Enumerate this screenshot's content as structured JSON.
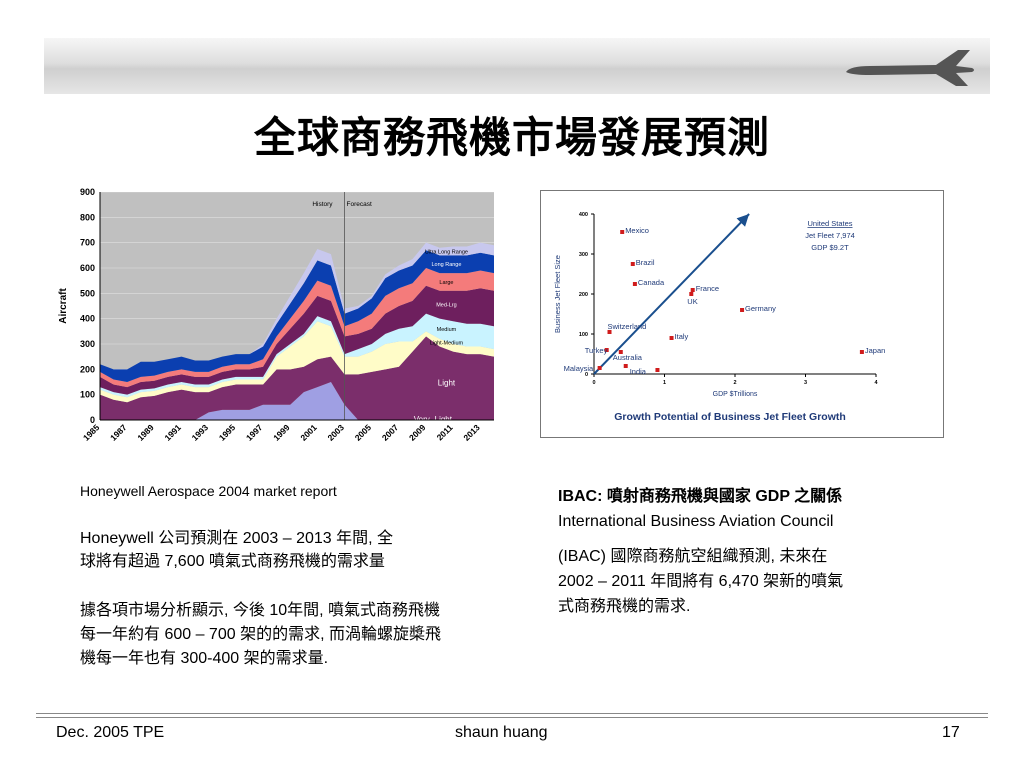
{
  "slide": {
    "title": "全球商務飛機市場發展預測",
    "footer_left": "Dec. 2005 TPE",
    "footer_center": "shaun huang",
    "footer_right": "17"
  },
  "left_text": {
    "source": "Honeywell Aerospace 2004 market report",
    "para1_line1": "Honeywell 公司預測在 2003 – 2013 年間, 全",
    "para1_line2": "球將有超過 7,600 噴氣式商務飛機的需求量",
    "para2_line1": "據各項市場分析顯示, 今後 10年間, 噴氣式商務飛機",
    "para2_line2": "每一年約有 600 – 700 架的的需求, 而渦輪螺旋槳飛",
    "para2_line3": "機每一年也有 300-400 架的需求量."
  },
  "right_text": {
    "heading": "IBAC:  噴射商務飛機與國家 GDP 之關係",
    "org": "International Business Aviation Council",
    "para_line1": "(IBAC) 國際商務航空組織預測, 未來在",
    "para_line2": "2002 – 2011 年間將有 6,470 架新的噴氣",
    "para_line3": "式商務飛機的需求."
  },
  "chart_data": [
    {
      "type": "area",
      "ylabel": "Aircraft",
      "ylim": [
        0,
        900
      ],
      "yticks": [
        0,
        100,
        200,
        300,
        400,
        500,
        600,
        700,
        800,
        900
      ],
      "xticks": [
        "1985",
        "1987",
        "1989",
        "1991",
        "1993",
        "1995",
        "1997",
        "1999",
        "2001",
        "2003",
        "2005",
        "2007",
        "2009",
        "2011",
        "2013"
      ],
      "x": [
        1985,
        1986,
        1987,
        1988,
        1989,
        1990,
        1991,
        1992,
        1993,
        1994,
        1995,
        1996,
        1997,
        1998,
        1999,
        2000,
        2001,
        2002,
        2003,
        2004,
        2005,
        2006,
        2007,
        2008,
        2009,
        2010,
        2011,
        2012,
        2013,
        2014
      ],
      "annotations": [
        "History",
        "Forecast"
      ],
      "series": [
        {
          "name": "Very -Light",
          "color": "#9f9fe3",
          "values": [
            0,
            0,
            0,
            0,
            0,
            0,
            0,
            0,
            30,
            40,
            40,
            40,
            60,
            60,
            60,
            110,
            130,
            150,
            60,
            0,
            0,
            0,
            0,
            0,
            0,
            0,
            0,
            0,
            0,
            0
          ]
        },
        {
          "name": "Light",
          "color": "#7b2e6b",
          "values": [
            100,
            80,
            70,
            90,
            95,
            110,
            120,
            110,
            80,
            90,
            100,
            100,
            80,
            140,
            140,
            100,
            110,
            100,
            120,
            180,
            190,
            200,
            210,
            270,
            330,
            290,
            270,
            260,
            260,
            250
          ]
        },
        {
          "name": "Light-Medium",
          "color": "#fffcc8",
          "values": [
            20,
            20,
            20,
            20,
            20,
            20,
            20,
            20,
            20,
            20,
            20,
            20,
            20,
            50,
            90,
            120,
            150,
            120,
            70,
            70,
            80,
            100,
            100,
            40,
            20,
            30,
            30,
            30,
            30,
            30
          ]
        },
        {
          "name": "Medium",
          "color": "#c9f3ff",
          "values": [
            10,
            10,
            10,
            10,
            10,
            10,
            10,
            10,
            10,
            10,
            10,
            10,
            10,
            10,
            10,
            10,
            20,
            20,
            10,
            30,
            30,
            40,
            50,
            60,
            70,
            80,
            90,
            90,
            90,
            90
          ]
        },
        {
          "name": "Med-Lrg",
          "color": "#6e1f5e",
          "values": [
            40,
            30,
            30,
            30,
            30,
            30,
            30,
            30,
            30,
            30,
            30,
            30,
            40,
            40,
            60,
            80,
            80,
            80,
            70,
            60,
            60,
            80,
            90,
            100,
            110,
            110,
            120,
            130,
            140,
            140
          ]
        },
        {
          "name": "Large",
          "color": "#f47b7b",
          "values": [
            20,
            20,
            20,
            20,
            20,
            20,
            20,
            20,
            20,
            20,
            20,
            20,
            30,
            30,
            40,
            50,
            60,
            60,
            40,
            50,
            60,
            70,
            70,
            70,
            70,
            70,
            70,
            70,
            70,
            70
          ]
        },
        {
          "name": "Long Range",
          "color": "#0b3fb0",
          "values": [
            30,
            40,
            50,
            60,
            55,
            50,
            50,
            45,
            45,
            40,
            40,
            40,
            50,
            50,
            60,
            70,
            80,
            80,
            50,
            50,
            60,
            70,
            70,
            70,
            70,
            70,
            70,
            70,
            70,
            70
          ]
        },
        {
          "name": "Ultra Long Range",
          "color": "#c8c8ee",
          "values": [
            0,
            0,
            0,
            0,
            0,
            0,
            0,
            0,
            0,
            0,
            0,
            0,
            10,
            20,
            30,
            40,
            45,
            45,
            20,
            10,
            10,
            15,
            20,
            25,
            30,
            30,
            35,
            35,
            40,
            40
          ]
        }
      ]
    },
    {
      "type": "scatter",
      "title": "Growth Potential of Business Jet Fleet Growth",
      "xlabel": "GDP $Trillions",
      "ylabel": "Business Jet Fleet Size",
      "xlim": [
        0,
        4
      ],
      "ylim": [
        0,
        400
      ],
      "xticks": [
        0,
        1,
        2,
        3,
        4
      ],
      "yticks": [
        0,
        100,
        200,
        300,
        400
      ],
      "point_color": "#d01c1c",
      "trend_color": "#1a4f8e",
      "annotation": {
        "line1": "United States",
        "line2": "Jet Fleet 7,974",
        "line3": "GDP $9.2T"
      },
      "points": [
        {
          "label": "Mexico",
          "x": 0.4,
          "y": 355
        },
        {
          "label": "Brazil",
          "x": 0.55,
          "y": 275
        },
        {
          "label": "Canada",
          "x": 0.58,
          "y": 225
        },
        {
          "label": "France",
          "x": 1.4,
          "y": 210
        },
        {
          "label": "UK",
          "x": 1.38,
          "y": 200
        },
        {
          "label": "Germany",
          "x": 2.1,
          "y": 160
        },
        {
          "label": "Switzerland",
          "x": 0.22,
          "y": 105
        },
        {
          "label": "Italy",
          "x": 1.1,
          "y": 90
        },
        {
          "label": "Turkey",
          "x": 0.18,
          "y": 60
        },
        {
          "label": "Australia",
          "x": 0.38,
          "y": 55
        },
        {
          "label": "Malaysia",
          "x": 0.08,
          "y": 15
        },
        {
          "label": "India",
          "x": 0.45,
          "y": 20
        },
        {
          "label": "",
          "x": 0.9,
          "y": 10
        },
        {
          "label": "Japan",
          "x": 3.8,
          "y": 55
        }
      ],
      "trend": {
        "x0": 0,
        "y0": 0,
        "x1": 2.2,
        "y1": 400
      }
    }
  ]
}
